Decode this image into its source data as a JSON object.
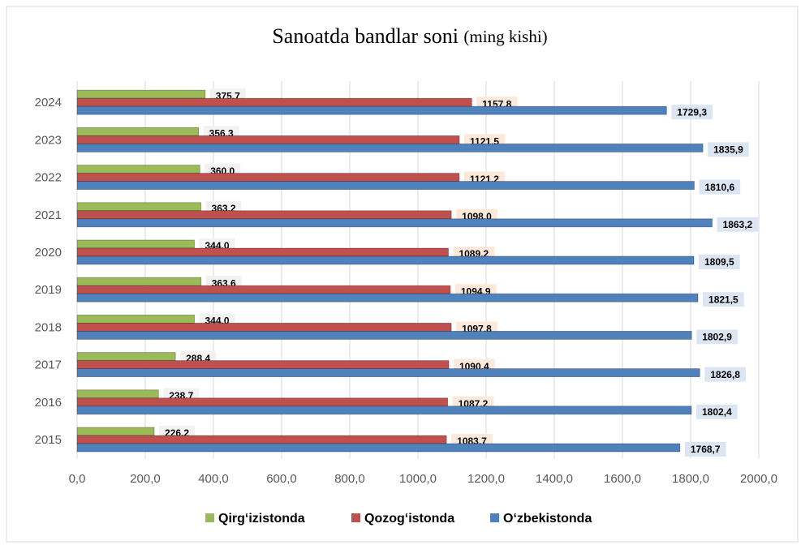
{
  "chart_data": {
    "type": "hbar",
    "title": "Sanoatda bandlar soni",
    "unit": "(ming kishi)",
    "categories": [
      "2015",
      "2016",
      "2017",
      "2018",
      "2019",
      "2020",
      "2021",
      "2022",
      "2023",
      "2024"
    ],
    "series": [
      {
        "name": "Qirg‘izistonda",
        "color": "#9bbb59",
        "values": [
          226.2,
          238.7,
          288.4,
          344.0,
          363.6,
          344.0,
          363.2,
          360.0,
          356.3,
          375.7
        ],
        "value_labels": [
          "226,2",
          "238,7",
          "288,4",
          "344,0",
          "363,6",
          "344,0",
          "363,2",
          "360,0",
          "356,3",
          "375,7"
        ]
      },
      {
        "name": "Qozog‘istonda",
        "color": "#c0504d",
        "values": [
          1083.7,
          1087.2,
          1090.4,
          1097.8,
          1094.9,
          1089.2,
          1098.0,
          1121.2,
          1121.5,
          1157.8
        ],
        "value_labels": [
          "1083,7",
          "1087,2",
          "1090,4",
          "1097,8",
          "1094,9",
          "1089,2",
          "1098,0",
          "1121,2",
          "1121,5",
          "1157,8"
        ]
      },
      {
        "name": "O‘zbekistonda",
        "color": "#4f81bd",
        "values": [
          1768.7,
          1802.4,
          1826.8,
          1802.9,
          1821.5,
          1809.5,
          1863.2,
          1810.6,
          1835.9,
          1729.3
        ],
        "value_labels": [
          "1768,7",
          "1802,4",
          "1826,8",
          "1802,9",
          "1821,5",
          "1809,5",
          "1863,2",
          "1810,6",
          "1835,9",
          "1729,3"
        ]
      }
    ],
    "xlim": [
      0,
      2000
    ],
    "xticks": [
      {
        "value": 0,
        "label": "0,0"
      },
      {
        "value": 200,
        "label": "200,0"
      },
      {
        "value": 400,
        "label": "400,0"
      },
      {
        "value": 600,
        "label": "600,0"
      },
      {
        "value": 800,
        "label": "800,0"
      },
      {
        "value": 1000,
        "label": "1000,0"
      },
      {
        "value": 1200,
        "label": "1200,0"
      },
      {
        "value": 1400,
        "label": "1400,0"
      },
      {
        "value": 1600,
        "label": "1600,0"
      },
      {
        "value": 1800,
        "label": "1800,0"
      },
      {
        "value": 2000,
        "label": "2000,0"
      }
    ],
    "grid": true,
    "legend": "bottom"
  }
}
